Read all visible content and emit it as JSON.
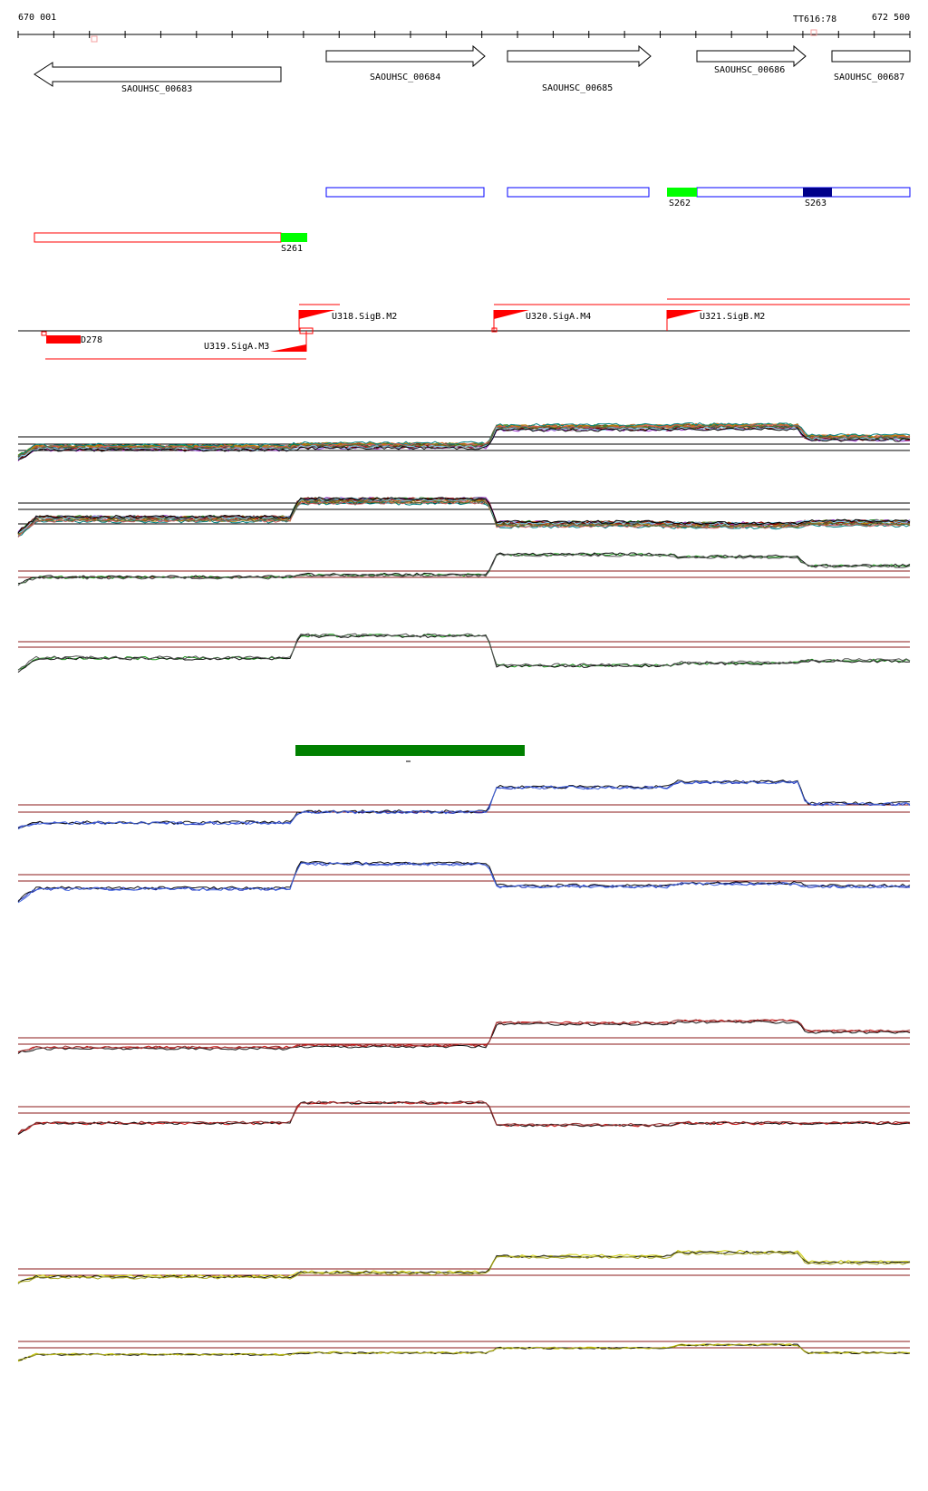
{
  "colors": {
    "gene_arrow": "#000000",
    "segment_blue": "#0000ff",
    "segment_red": "#ff0000",
    "highlight_green": "#00ff00",
    "highlight_navy": "#00008b",
    "promoter_red": "#ff0000",
    "bar_green": "#008000",
    "baseline_dark_red": "#8b1a1a",
    "trace_green": "#1a9a1a",
    "trace_blue": "#2233bb",
    "trace_red": "#cc1111",
    "trace_yellow": "#cccc00",
    "trace_black": "#111111"
  },
  "ruler": {
    "start_label": "670 001",
    "end_label": "672 500",
    "marker_label": "TT616:78"
  },
  "genes": [
    {
      "label": "SAOUHSC_00683",
      "strand": "-"
    },
    {
      "label": "SAOUHSC_00684",
      "strand": "+"
    },
    {
      "label": "SAOUHSC_00685",
      "strand": "+"
    },
    {
      "label": "SAOUHSC_00686",
      "strand": "+"
    },
    {
      "label": "SAOUHSC_00687",
      "strand": "+"
    }
  ],
  "segments": {
    "s262": "S262",
    "s263": "S263",
    "s261": "S261",
    "d278": "D278"
  },
  "promoters": {
    "u318": "U318.SigB.M2",
    "u319": "U319.SigA.M3",
    "u320": "U320.SigA.M4",
    "u321": "U321.SigB.M2"
  },
  "chart_data": {
    "type": "line",
    "title": "",
    "xlabel": "",
    "ylabel": "",
    "x_range": [
      670001,
      672500
    ],
    "panels": [
      {
        "id": "tiling-forward",
        "series_colors": "multicolor",
        "trend_levels": [
          0.3,
          0.34,
          0.7,
          0.72,
          0.5
        ]
      },
      {
        "id": "tiling-reverse",
        "series_colors": "multicolor",
        "trend_levels": [
          0.4,
          0.75,
          0.3,
          0.28,
          0.32
        ]
      },
      {
        "id": "green-forward",
        "series_colors": "green/black",
        "trend_levels": [
          0.25,
          0.3,
          0.75,
          0.7,
          0.5
        ]
      },
      {
        "id": "green-reverse",
        "series_colors": "green/black",
        "trend_levels": [
          0.35,
          0.8,
          0.2,
          0.25,
          0.3
        ]
      },
      {
        "id": "blue-forward",
        "series_colors": "blue/black",
        "trend_levels": [
          0.2,
          0.4,
          0.85,
          0.95,
          0.55
        ]
      },
      {
        "id": "blue-reverse",
        "series_colors": "blue/black",
        "trend_levels": [
          0.35,
          0.85,
          0.4,
          0.45,
          0.4
        ]
      },
      {
        "id": "red-forward",
        "series_colors": "red/black",
        "trend_levels": [
          0.2,
          0.25,
          0.8,
          0.85,
          0.6
        ]
      },
      {
        "id": "red-reverse",
        "series_colors": "red/black",
        "trend_levels": [
          0.35,
          0.85,
          0.3,
          0.35,
          0.35
        ]
      },
      {
        "id": "yellow-forward",
        "series_colors": "yellow/black",
        "trend_levels": [
          0.25,
          0.35,
          0.75,
          0.85,
          0.6
        ]
      },
      {
        "id": "yellow-reverse",
        "series_colors": "yellow/black",
        "trend_levels": [
          0.3,
          0.35,
          0.5,
          0.6,
          0.35
        ]
      }
    ]
  }
}
